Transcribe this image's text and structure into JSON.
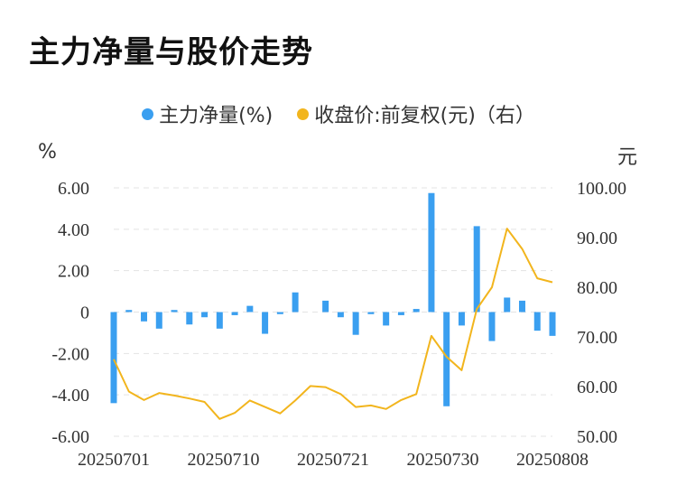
{
  "title": "主力净量与股价走势",
  "legend": {
    "series1": "主力净量(%)",
    "series2": "收盘价:前复权(元)（右）"
  },
  "units": {
    "left": "%",
    "right": "元"
  },
  "colors": {
    "bar": "#3a9ff0",
    "line": "#f2b51d",
    "grid": "#e3e3e3",
    "text": "#333333"
  },
  "chart_data": {
    "type": "bar+line",
    "x_tick_labels": [
      "20250701",
      "20250710",
      "20250721",
      "20250730",
      "20250808"
    ],
    "left_axis": {
      "ylim": [
        -6,
        6
      ],
      "ticks": [
        "6.00",
        "4.00",
        "2.00",
        "0",
        "-2.00",
        "-4.00",
        "-6.00"
      ]
    },
    "right_axis": {
      "ylim": [
        50,
        100
      ],
      "ticks": [
        "100.00",
        "90.00",
        "80.00",
        "70.00",
        "60.00",
        "50.00"
      ]
    },
    "grid": true,
    "legend_position": "top-center",
    "series": [
      {
        "name": "主力净量(%)",
        "type": "bar",
        "axis": "left",
        "values": [
          -4.4,
          0.1,
          -0.45,
          -0.8,
          0.1,
          -0.6,
          -0.25,
          -0.8,
          -0.15,
          0.3,
          -1.05,
          -0.1,
          0.95,
          0.0,
          0.55,
          -0.25,
          -1.1,
          -0.1,
          -0.65,
          -0.15,
          0.15,
          5.75,
          -4.55,
          -0.65,
          4.15,
          -1.4,
          0.7,
          0.55,
          -0.9,
          -1.15
        ]
      },
      {
        "name": "收盘价:前复权(元)（右）",
        "type": "line",
        "axis": "right",
        "values": [
          65.5,
          59.0,
          57.3,
          58.7,
          58.2,
          57.6,
          56.9,
          53.5,
          54.7,
          57.2,
          55.9,
          54.6,
          57.2,
          60.1,
          59.9,
          58.5,
          55.9,
          56.2,
          55.5,
          57.3,
          58.5,
          70.2,
          66.0,
          63.3,
          75.6,
          80.0,
          91.8,
          87.7,
          81.8,
          81.0
        ]
      }
    ]
  }
}
